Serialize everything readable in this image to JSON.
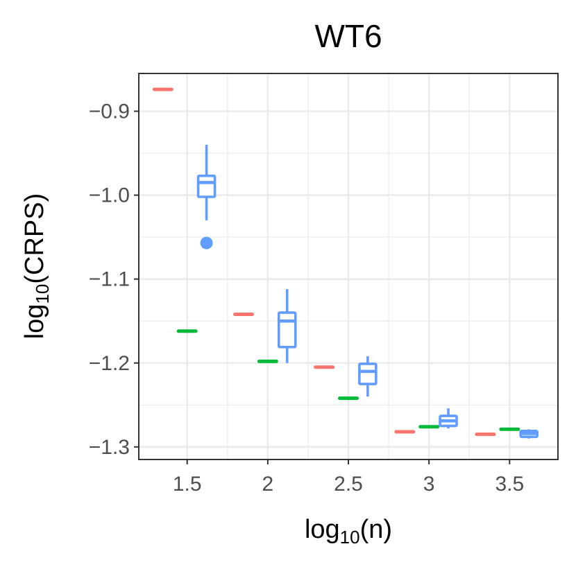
{
  "chart_data": {
    "type": "boxplot",
    "title": "WT6",
    "xlabel": {
      "base": "log",
      "sub": "10",
      "rest": "(n)"
    },
    "ylabel": {
      "base": "log",
      "sub": "10",
      "rest": "(CRPS)"
    },
    "xlim": [
      1.2,
      3.8
    ],
    "ylim": [
      -1.315,
      -0.855
    ],
    "x_ticks": [
      1.5,
      2,
      2.5,
      3,
      3.5
    ],
    "x_tick_labels": [
      "1.5",
      "2",
      "2.5",
      "3",
      "3.5"
    ],
    "y_ticks": [
      -0.9,
      -1.0,
      -1.1,
      -1.2,
      -1.3
    ],
    "y_tick_labels": [
      "−0.9",
      "−1.0",
      "−1.1",
      "−1.2",
      "−1.3"
    ],
    "grid": true,
    "legend": "none",
    "series": [
      {
        "color": "#F8766D",
        "offset": -0.15,
        "boxes": [
          {
            "x": 1.5,
            "min": -0.874,
            "q1": -0.874,
            "median": -0.874,
            "q3": -0.874,
            "max": -0.874,
            "outliers": []
          },
          {
            "x": 2.0,
            "min": -1.142,
            "q1": -1.142,
            "median": -1.142,
            "q3": -1.142,
            "max": -1.142,
            "outliers": []
          },
          {
            "x": 2.5,
            "min": -1.205,
            "q1": -1.205,
            "median": -1.205,
            "q3": -1.205,
            "max": -1.205,
            "outliers": []
          },
          {
            "x": 3.0,
            "min": -1.282,
            "q1": -1.282,
            "median": -1.282,
            "q3": -1.282,
            "max": -1.282,
            "outliers": []
          },
          {
            "x": 3.5,
            "min": -1.285,
            "q1": -1.285,
            "median": -1.285,
            "q3": -1.285,
            "max": -1.285,
            "outliers": []
          }
        ]
      },
      {
        "color": "#00BA38",
        "offset": 0.0,
        "boxes": [
          {
            "x": 1.5,
            "min": -1.162,
            "q1": -1.162,
            "median": -1.162,
            "q3": -1.162,
            "max": -1.162,
            "outliers": []
          },
          {
            "x": 2.0,
            "min": -1.198,
            "q1": -1.198,
            "median": -1.198,
            "q3": -1.198,
            "max": -1.198,
            "outliers": []
          },
          {
            "x": 2.5,
            "min": -1.242,
            "q1": -1.242,
            "median": -1.242,
            "q3": -1.242,
            "max": -1.242,
            "outliers": []
          },
          {
            "x": 3.0,
            "min": -1.276,
            "q1": -1.276,
            "median": -1.276,
            "q3": -1.276,
            "max": -1.276,
            "outliers": []
          },
          {
            "x": 3.5,
            "min": -1.279,
            "q1": -1.279,
            "median": -1.279,
            "q3": -1.279,
            "max": -1.279,
            "outliers": []
          }
        ]
      },
      {
        "color": "#619CFF",
        "offset": 0.12,
        "boxes": [
          {
            "x": 1.5,
            "min": -1.03,
            "q1": -1.002,
            "median": -0.985,
            "q3": -0.977,
            "max": -0.94,
            "outliers": [
              -1.057
            ]
          },
          {
            "x": 2.0,
            "min": -1.2,
            "q1": -1.181,
            "median": -1.15,
            "q3": -1.14,
            "max": -1.112,
            "outliers": []
          },
          {
            "x": 2.5,
            "min": -1.24,
            "q1": -1.225,
            "median": -1.21,
            "q3": -1.201,
            "max": -1.192,
            "outliers": []
          },
          {
            "x": 3.0,
            "min": -1.278,
            "q1": -1.275,
            "median": -1.269,
            "q3": -1.263,
            "max": -1.254,
            "outliers": []
          },
          {
            "x": 3.5,
            "min": -1.29,
            "q1": -1.288,
            "median": -1.284,
            "q3": -1.281,
            "max": -1.279,
            "outliers": []
          }
        ]
      }
    ]
  }
}
